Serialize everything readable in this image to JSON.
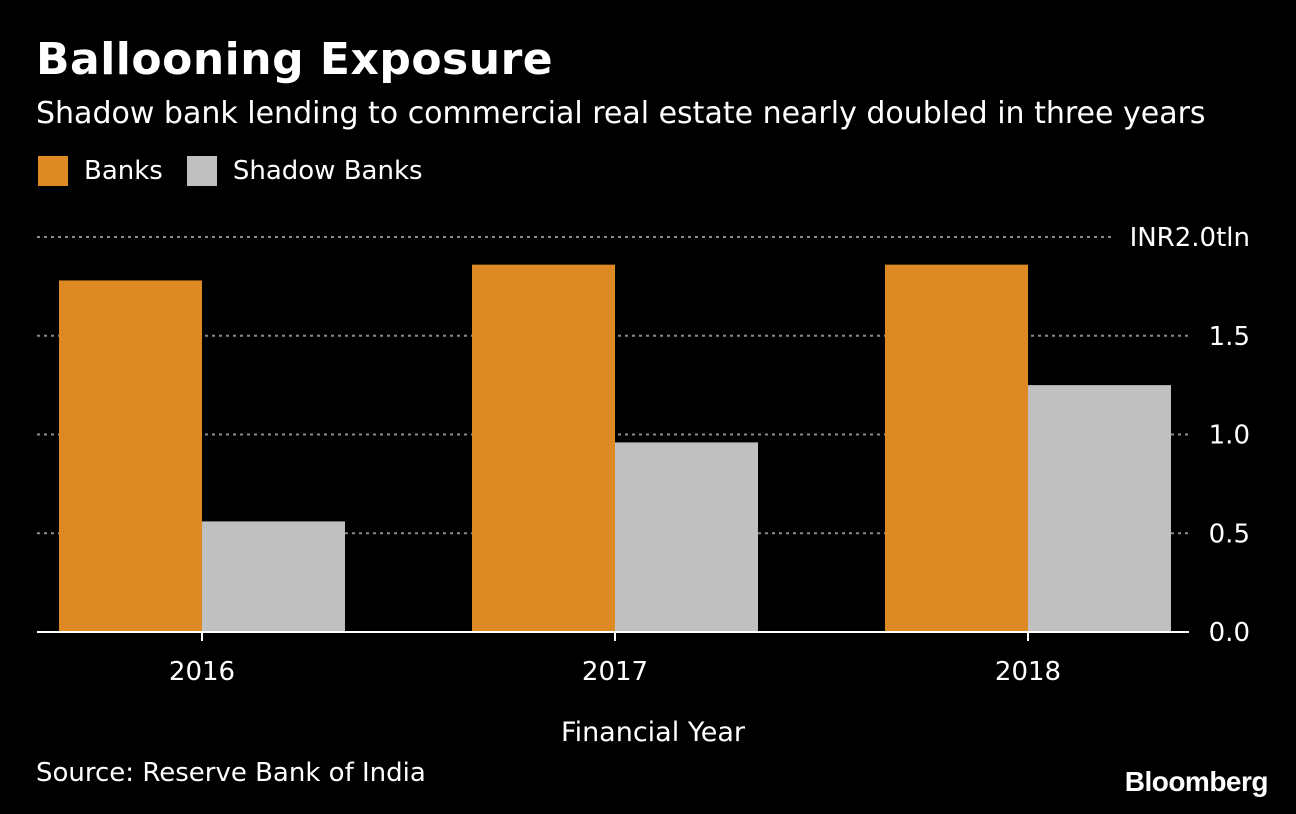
{
  "title": "Ballooning Exposure",
  "subtitle": "Shadow bank lending to commercial real estate nearly doubled in three years",
  "source": "Source: Reserve Bank of India",
  "brand": "Bloomberg",
  "colors": {
    "background": "#000000",
    "banks": "#dd8a24",
    "shadow_banks": "#c0c0c0",
    "grid": "#8a8a8a",
    "axis": "#ffffff",
    "text": "#ffffff"
  },
  "chart_data": {
    "type": "bar",
    "title": "Ballooning Exposure",
    "subtitle": "Shadow bank lending to commercial real estate nearly doubled in three years",
    "xlabel": "Financial Year",
    "ylabel": "",
    "categories": [
      "2016",
      "2017",
      "2018"
    ],
    "series": [
      {
        "name": "Banks",
        "values": [
          1.78,
          1.86,
          1.86
        ]
      },
      {
        "name": "Shadow Banks",
        "values": [
          0.56,
          0.96,
          1.25
        ]
      }
    ],
    "ylim": [
      0,
      2.0
    ],
    "yticks": [
      0.0,
      0.5,
      1.0,
      1.5,
      2.0
    ],
    "ytick_labels": [
      "0.0",
      "0.5",
      "1.0",
      "1.5",
      "INR2.0tln"
    ],
    "grid": true,
    "legend": "top-left",
    "y_axis_side": "right"
  }
}
